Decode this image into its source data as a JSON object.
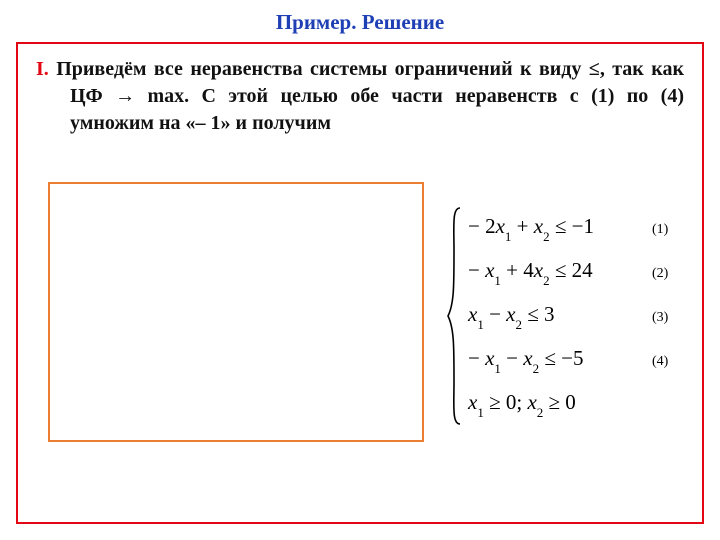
{
  "title": {
    "text": "Пример. Решение",
    "color": "#1f3fb5",
    "fontsize": 21
  },
  "main_box": {
    "border_color": "#e30613"
  },
  "paragraph": {
    "roman": "I.",
    "roman_color": "#e30613",
    "text": "Приведём  все неравенства системы  ограничений к виду ≤, так как ЦФ → max. С этой целью обе части неравенств с (1) по (4) умножим на «– 1» и получим",
    "text_color": "#111111",
    "fontsize": 20
  },
  "inner_box": {
    "border_color": "#ed7d31"
  },
  "system": {
    "text_color": "#000000",
    "fontsize": 21,
    "number_fontsize": 14,
    "brace_color": "#000000",
    "lines": [
      {
        "lhs_html": "− 2<i>x</i><sub>1</sub> + <i>x</i><sub>2</sub>",
        "rel": "≤",
        "rhs": "−1",
        "num": "(1)"
      },
      {
        "lhs_html": "− <i>x</i><sub>1</sub> + 4<i>x</i><sub>2</sub>",
        "rel": "≤",
        "rhs": "24",
        "num": "(2)"
      },
      {
        "lhs_html": "<i>x</i><sub>1</sub> − <i>x</i><sub>2</sub>",
        "rel": "≤",
        "rhs": "3",
        "num": "(3)"
      },
      {
        "lhs_html": "− <i>x</i><sub>1</sub> − <i>x</i><sub>2</sub>",
        "rel": "≤",
        "rhs": "−5",
        "num": "(4)"
      },
      {
        "lhs_html": "<i>x</i><sub>1</sub> ≥ 0; <i>x</i><sub>2</sub> ≥ 0",
        "rel": "",
        "rhs": "",
        "num": ""
      }
    ]
  }
}
